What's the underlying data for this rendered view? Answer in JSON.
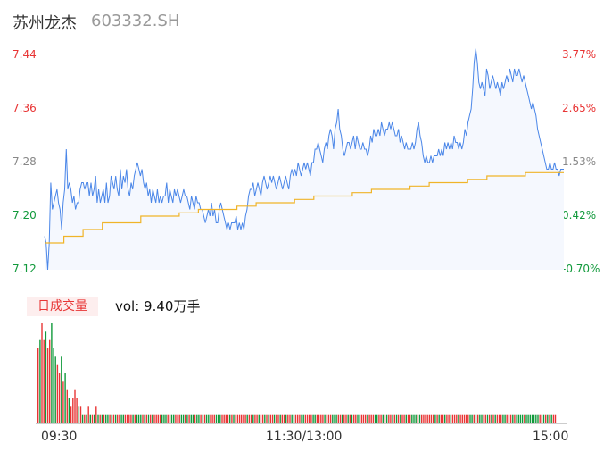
{
  "header": {
    "stock_name": "苏州龙杰",
    "stock_code": "603332.SH"
  },
  "price_axis": {
    "left_labels": [
      "7.44",
      "7.36",
      "7.28",
      "7.20",
      "7.12"
    ],
    "right_labels": [
      "3.77%",
      "2.65%",
      "1.53%",
      "0.42%",
      "-0.70%"
    ]
  },
  "volume_panel": {
    "tab_label": "日成交量",
    "volume_label": "vol: 9.40万手"
  },
  "time_axis": {
    "labels": [
      "09:30",
      "11:30/13:00",
      "15:00"
    ]
  },
  "colors": {
    "price_line": "#4a86e8",
    "avg_line": "#f0b429",
    "up": "#e83535",
    "down": "#129a3c",
    "area_fill": "#f5f8fe"
  },
  "chart_data": [
    {
      "type": "line",
      "title": "",
      "ylim": [
        7.12,
        7.44
      ],
      "series": [
        {
          "name": "",
          "values": [
            7.17,
            7.16,
            7.12,
            7.16,
            7.25,
            7.21,
            7.22,
            7.23,
            7.24,
            7.22,
            7.21,
            7.18,
            7.22,
            7.24,
            7.3,
            7.24,
            7.25,
            7.24,
            7.22,
            7.23,
            7.21,
            7.22,
            7.22,
            7.24,
            7.25,
            7.25,
            7.24,
            7.25,
            7.25,
            7.23,
            7.25,
            7.23,
            7.24,
            7.26,
            7.22,
            7.24,
            7.22,
            7.23,
            7.24,
            7.22,
            7.25,
            7.22,
            7.23,
            7.26,
            7.25,
            7.24,
            7.26,
            7.24,
            7.23,
            7.27,
            7.24,
            7.26,
            7.25,
            7.27,
            7.24,
            7.23,
            7.25,
            7.24,
            7.26,
            7.27,
            7.28,
            7.27,
            7.26,
            7.27,
            7.25,
            7.24,
            7.25,
            7.23,
            7.24,
            7.22,
            7.24,
            7.23,
            7.22,
            7.24,
            7.22,
            7.23,
            7.22,
            7.23,
            7.23,
            7.25,
            7.22,
            7.24,
            7.23,
            7.22,
            7.24,
            7.23,
            7.24,
            7.23,
            7.22,
            7.23,
            7.24,
            7.23,
            7.23,
            7.22,
            7.21,
            7.23,
            7.22,
            7.21,
            7.23,
            7.22,
            7.22,
            7.21,
            7.21,
            7.2,
            7.19,
            7.2,
            7.21,
            7.2,
            7.22,
            7.2,
            7.21,
            7.19,
            7.19,
            7.21,
            7.22,
            7.21,
            7.2,
            7.19,
            7.18,
            7.19,
            7.18,
            7.19,
            7.19,
            7.19,
            7.2,
            7.18,
            7.19,
            7.18,
            7.19,
            7.18,
            7.2,
            7.21,
            7.23,
            7.24,
            7.24,
            7.25,
            7.23,
            7.24,
            7.25,
            7.24,
            7.23,
            7.25,
            7.26,
            7.25,
            7.24,
            7.25,
            7.26,
            7.25,
            7.26,
            7.25,
            7.24,
            7.25,
            7.26,
            7.25,
            7.24,
            7.25,
            7.26,
            7.25,
            7.24,
            7.26,
            7.27,
            7.26,
            7.27,
            7.26,
            7.28,
            7.27,
            7.26,
            7.27,
            7.28,
            7.27,
            7.28,
            7.27,
            7.26,
            7.28,
            7.28,
            7.3,
            7.3,
            7.31,
            7.3,
            7.29,
            7.28,
            7.3,
            7.31,
            7.3,
            7.32,
            7.33,
            7.32,
            7.3,
            7.33,
            7.34,
            7.36,
            7.33,
            7.32,
            7.3,
            7.29,
            7.3,
            7.31,
            7.31,
            7.3,
            7.31,
            7.32,
            7.3,
            7.32,
            7.31,
            7.3,
            7.3,
            7.31,
            7.3,
            7.3,
            7.29,
            7.3,
            7.32,
            7.31,
            7.33,
            7.32,
            7.32,
            7.33,
            7.32,
            7.34,
            7.33,
            7.32,
            7.33,
            7.33,
            7.34,
            7.33,
            7.34,
            7.33,
            7.32,
            7.32,
            7.33,
            7.31,
            7.32,
            7.31,
            7.3,
            7.31,
            7.3,
            7.3,
            7.3,
            7.31,
            7.3,
            7.31,
            7.33,
            7.34,
            7.32,
            7.31,
            7.29,
            7.28,
            7.29,
            7.28,
            7.28,
            7.29,
            7.28,
            7.29,
            7.29,
            7.29,
            7.3,
            7.29,
            7.3,
            7.29,
            7.31,
            7.3,
            7.31,
            7.3,
            7.31,
            7.3,
            7.32,
            7.31,
            7.31,
            7.3,
            7.31,
            7.3,
            7.31,
            7.33,
            7.32,
            7.34,
            7.35,
            7.36,
            7.39,
            7.43,
            7.45,
            7.43,
            7.4,
            7.39,
            7.4,
            7.39,
            7.38,
            7.42,
            7.41,
            7.39,
            7.4,
            7.41,
            7.4,
            7.39,
            7.4,
            7.39,
            7.38,
            7.4,
            7.39,
            7.4,
            7.41,
            7.4,
            7.42,
            7.41,
            7.4,
            7.42,
            7.41,
            7.41,
            7.42,
            7.41,
            7.4,
            7.41,
            7.4,
            7.39,
            7.38,
            7.37,
            7.36,
            7.37,
            7.36,
            7.35,
            7.33,
            7.32,
            7.31,
            7.3,
            7.29,
            7.28,
            7.27,
            7.27,
            7.28,
            7.27,
            7.27,
            7.28,
            7.27,
            7.27,
            7.26,
            7.27,
            7.27,
            7.27
          ]
        },
        {
          "name": "",
          "values": [
            7.16,
            7.17,
            7.18,
            7.19,
            7.19,
            7.2,
            7.2,
            7.205,
            7.21,
            7.21,
            7.215,
            7.22,
            7.22,
            7.225,
            7.23,
            7.23,
            7.235,
            7.24,
            7.24,
            7.245,
            7.25,
            7.25,
            7.255,
            7.26,
            7.26,
            7.265,
            7.265
          ]
        }
      ]
    },
    {
      "type": "bar",
      "title": "",
      "series": [
        {
          "name": "",
          "values": [
            9,
            10,
            12,
            10,
            11,
            9,
            10,
            12,
            9,
            8,
            7,
            6,
            8,
            5,
            6,
            4,
            3,
            2,
            3,
            4,
            3,
            2,
            2,
            1,
            1,
            1,
            2,
            1,
            1,
            1,
            2,
            1,
            1,
            1,
            1,
            1,
            1,
            1,
            1,
            1,
            1,
            1,
            1,
            1,
            1,
            1,
            1,
            1,
            1,
            1,
            1,
            1,
            1,
            1,
            1,
            1,
            1,
            1,
            1,
            1,
            1,
            1,
            1,
            1,
            1,
            1,
            1,
            1,
            1,
            1,
            1,
            1,
            1,
            1,
            1,
            1,
            1,
            1,
            1,
            1,
            1,
            1,
            1,
            1,
            1,
            1,
            1,
            1,
            1,
            1,
            1,
            1,
            1,
            1,
            1,
            1,
            1,
            1,
            1,
            1,
            1,
            1,
            1,
            1,
            1,
            1,
            1,
            1,
            1,
            1,
            1,
            1,
            1,
            1,
            1,
            1,
            1,
            1,
            1,
            1,
            1,
            1,
            1,
            1,
            1,
            1,
            1,
            1,
            1,
            1,
            1,
            1,
            1,
            1,
            1,
            1,
            1,
            1,
            1,
            1,
            1,
            1,
            1,
            1,
            1,
            1,
            1,
            1,
            1,
            1,
            1,
            1,
            1,
            1,
            1,
            1,
            1,
            1,
            1,
            1,
            1,
            1,
            1,
            1,
            1,
            1,
            1,
            1,
            1,
            1,
            1,
            1,
            1,
            1,
            1,
            1,
            1,
            1,
            1,
            1,
            1,
            1,
            1,
            1,
            1,
            1,
            1,
            1,
            1,
            1,
            1,
            1,
            1,
            1,
            1,
            1,
            1,
            1,
            1,
            1,
            1,
            1,
            1,
            1,
            1,
            1,
            1,
            1,
            1,
            1,
            1,
            1,
            1,
            1,
            1,
            1,
            1,
            1,
            1,
            1,
            1,
            1,
            1,
            1,
            1,
            1,
            1,
            1,
            1,
            1,
            1,
            1,
            1,
            1,
            1,
            1,
            1,
            1,
            1,
            1,
            1,
            1,
            1,
            1,
            1,
            1,
            1,
            1,
            1,
            1,
            1,
            1,
            1,
            1,
            1,
            1,
            1,
            1,
            1,
            1,
            1,
            1,
            1,
            1,
            1,
            1,
            1,
            1
          ]
        }
      ]
    }
  ]
}
